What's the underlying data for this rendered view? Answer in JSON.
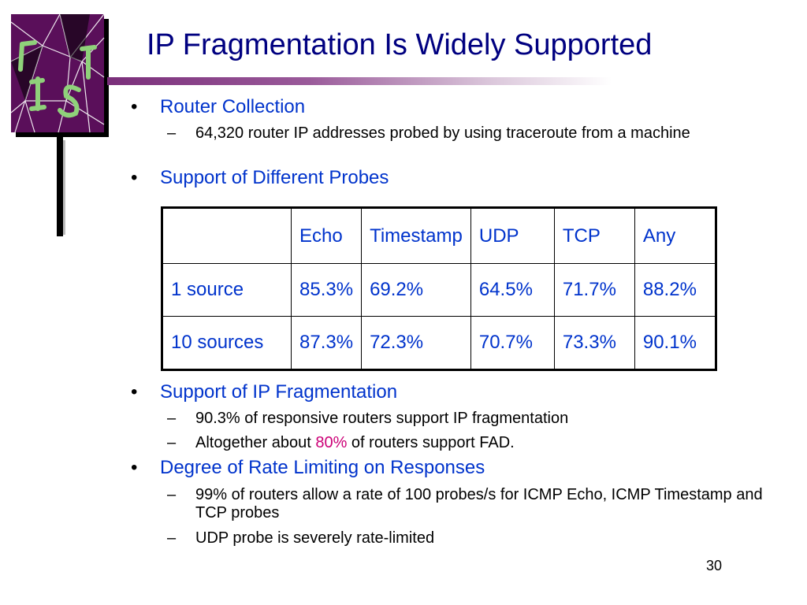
{
  "slide": {
    "title": "IP Fragmentation Is Widely Supported",
    "page_number": "30"
  },
  "bullets": [
    {
      "text": "Router Collection",
      "subs": [
        {
          "text": "64,320 router IP addresses probed by using traceroute from a machine"
        }
      ]
    },
    {
      "text": "Support of Different Probes",
      "subs": []
    },
    {
      "text": "Support of IP Fragmentation",
      "subs": [
        {
          "text": "90.3% of responsive routers support IP fragmentation"
        },
        {
          "before": "Altogether about ",
          "highlight": "80%",
          "after": " of routers support FAD."
        }
      ]
    },
    {
      "text": "Degree of Rate Limiting on Responses",
      "subs": [
        {
          "text": "99% of routers allow a rate of 100 probes/s for ICMP Echo, ICMP Timestamp and TCP probes"
        },
        {
          "text": "UDP probe is severely rate-limited"
        }
      ]
    }
  ],
  "table": {
    "headers": [
      "",
      "Echo",
      "Timestamp",
      "UDP",
      "TCP",
      "Any"
    ],
    "rows": [
      [
        "1 source",
        "85.3%",
        "69.2%",
        "64.5%",
        "71.7%",
        "88.2%"
      ],
      [
        "10 sources",
        "87.3%",
        "72.3%",
        "70.7%",
        "73.3%",
        "90.1%"
      ]
    ]
  },
  "colors": {
    "title": "#000080",
    "bullet_text": "#0033cc",
    "highlight": "#cc0077",
    "logo_background": "#5a0f5a",
    "logo_letters": "#8fd17a"
  },
  "logo": {
    "icon": "cracked-glass-logo"
  }
}
